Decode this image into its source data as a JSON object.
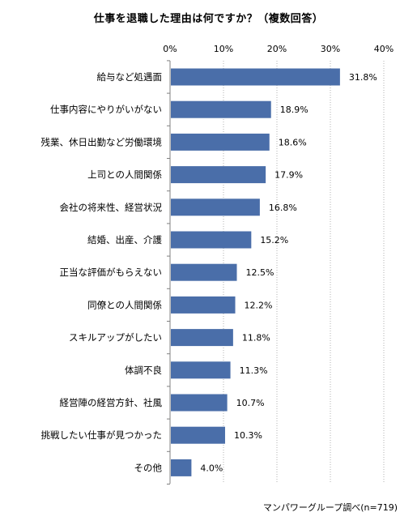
{
  "chart_data": {
    "type": "bar",
    "orientation": "horizontal",
    "title": "仕事を退職した理由は何ですか？（複数回答）",
    "source": "マンパワーグループ調べ(n=719)",
    "categories": [
      "給与など処遇面",
      "仕事内容にやりがいがない",
      "残業、休日出勤など労働環境",
      "上司との人間関係",
      "会社の将来性、経営状況",
      "結婚、出産、介護",
      "正当な評価がもらえない",
      "同僚との人間関係",
      "スキルアップがしたい",
      "体調不良",
      "経営陣の経営方針、社風",
      "挑戦したい仕事が見つかった",
      "その他"
    ],
    "values": [
      31.8,
      18.9,
      18.6,
      17.9,
      16.8,
      15.2,
      12.5,
      12.2,
      11.8,
      11.3,
      10.7,
      10.3,
      4.0
    ],
    "value_labels": [
      "31.8%",
      "18.9%",
      "18.6%",
      "17.9%",
      "16.8%",
      "15.2%",
      "12.5%",
      "12.2%",
      "11.8%",
      "11.3%",
      "10.7%",
      "10.3%",
      "4.0%"
    ],
    "xlim": [
      0,
      40
    ],
    "xticks": [
      0,
      10,
      20,
      30,
      40
    ],
    "xtick_labels": [
      "0%",
      "10%",
      "20%",
      "30%",
      "40%"
    ],
    "grid": "vertical-dotted",
    "legend": "none",
    "bar_color": "#4a6ea9",
    "grid_color": "#b0b0b0",
    "axis_color": "#808080"
  }
}
